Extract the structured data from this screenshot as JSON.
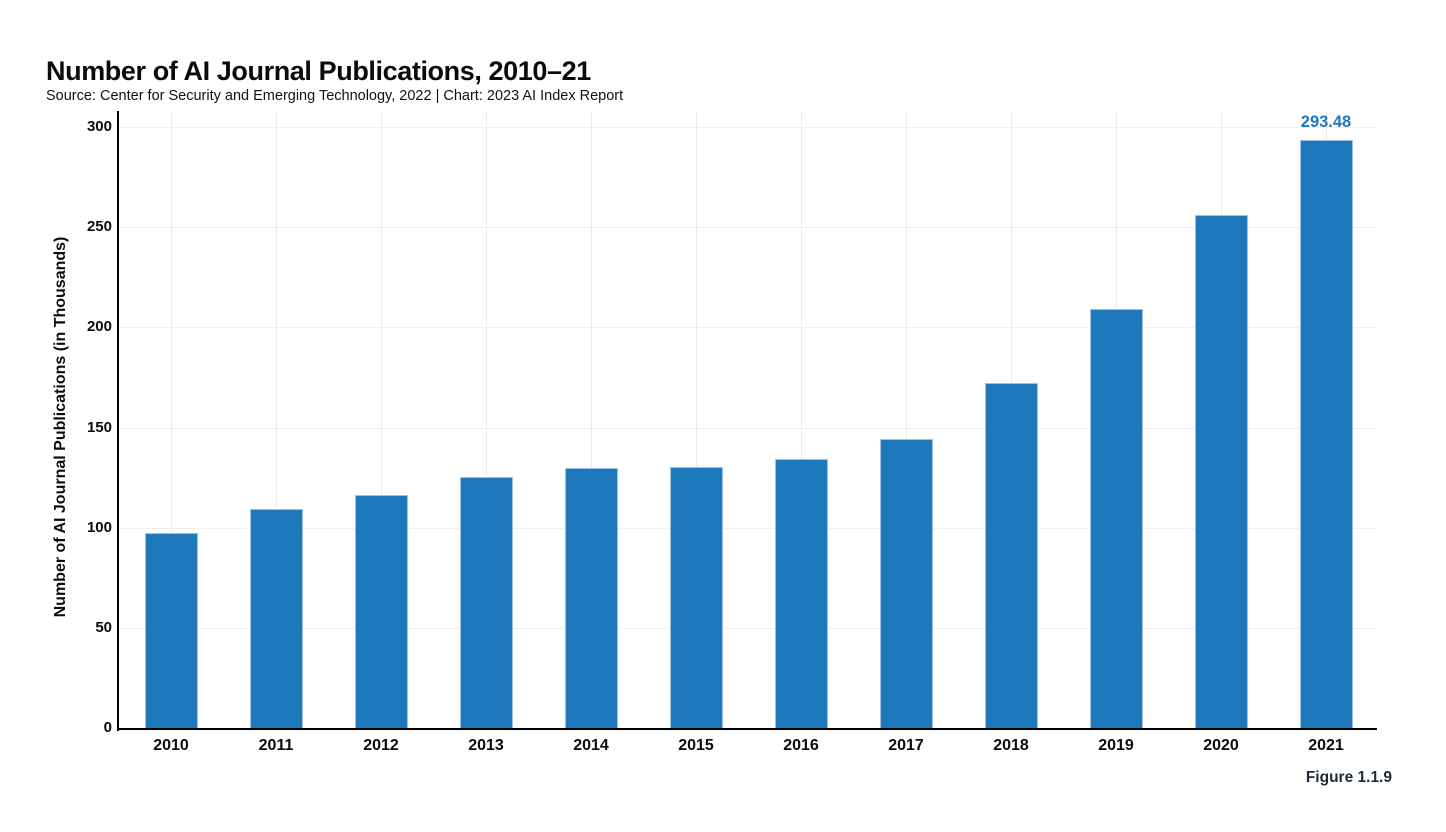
{
  "header": {
    "title": "Number of AI Journal Publications, 2010–21",
    "source_line": "Source: Center for Security and Emerging Technology, 2022 | Chart: 2023 AI Index Report"
  },
  "footer": {
    "figure_label": "Figure 1.1.9"
  },
  "colors": {
    "bar_fill": "#1E78BC",
    "bar_stroke": "#9CC2E5",
    "value_label": "#1E78BC",
    "figure_label": "#1B2B3C",
    "axis": "#000000",
    "gridline_h": "#F0F0F0",
    "gridline_v": "#EDEDED",
    "text": "#0B0B0B"
  },
  "chart_data": {
    "type": "bar",
    "title": "Number of AI Journal Publications, 2010–21",
    "subtitle": "Source: Center for Security and Emerging Technology, 2022 | Chart: 2023 AI Index Report",
    "categories": [
      "2010",
      "2011",
      "2012",
      "2013",
      "2014",
      "2015",
      "2016",
      "2017",
      "2018",
      "2019",
      "2020",
      "2021"
    ],
    "values": [
      97.5,
      109.5,
      116.5,
      125.5,
      130,
      130.5,
      134.5,
      144.5,
      172,
      209,
      256,
      293.48
    ],
    "xlabel": "",
    "ylabel": "Number of AI Journal Publications (in Thousands)",
    "ylim": [
      0,
      300
    ],
    "y_ticks": [
      0,
      50,
      100,
      150,
      200,
      250,
      300
    ],
    "grid": true,
    "legend": "none",
    "annotated_point": {
      "category": "2021",
      "label": "293.48"
    }
  }
}
